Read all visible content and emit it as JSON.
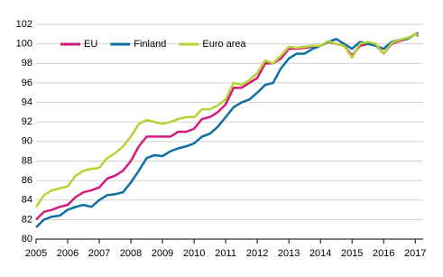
{
  "chart_data": {
    "type": "line",
    "x": [
      2005,
      2005.25,
      2005.5,
      2005.75,
      2006,
      2006.25,
      2006.5,
      2006.75,
      2007,
      2007.25,
      2007.5,
      2007.75,
      2008,
      2008.25,
      2008.5,
      2008.75,
      2009,
      2009.25,
      2009.5,
      2009.75,
      2010,
      2010.25,
      2010.5,
      2010.75,
      2011,
      2011.25,
      2011.5,
      2011.75,
      2012,
      2012.25,
      2012.5,
      2012.75,
      2013,
      2013.25,
      2013.5,
      2013.75,
      2014,
      2014.25,
      2014.5,
      2014.75,
      2015,
      2015.25,
      2015.5,
      2015.75,
      2016,
      2016.25,
      2016.5,
      2016.75,
      2017,
      2017.1
    ],
    "series": [
      {
        "name": "EU",
        "color": "#d6197c",
        "values": [
          82.0,
          82.8,
          83.0,
          83.3,
          83.5,
          84.3,
          84.8,
          85.0,
          85.3,
          86.2,
          86.5,
          87.0,
          88.0,
          89.5,
          90.5,
          90.5,
          90.5,
          90.5,
          91.0,
          91.0,
          91.3,
          92.3,
          92.5,
          93.0,
          93.8,
          95.5,
          95.5,
          96.0,
          96.5,
          98.0,
          98.0,
          98.5,
          99.5,
          99.5,
          99.6,
          99.7,
          99.8,
          100.2,
          100.0,
          99.8,
          98.8,
          99.8,
          100.0,
          99.9,
          99.0,
          100.0,
          100.3,
          100.5,
          101.0,
          100.8
        ]
      },
      {
        "name": "Finland",
        "color": "#0d6ea6",
        "values": [
          81.2,
          82.0,
          82.3,
          82.4,
          83.0,
          83.3,
          83.5,
          83.3,
          84.0,
          84.5,
          84.6,
          84.8,
          85.8,
          87.0,
          88.3,
          88.6,
          88.5,
          89.0,
          89.3,
          89.5,
          89.8,
          90.5,
          90.8,
          91.5,
          92.5,
          93.5,
          94.0,
          94.3,
          95.0,
          95.8,
          96.0,
          97.5,
          98.5,
          99.0,
          99.0,
          99.5,
          99.8,
          100.2,
          100.5,
          100.0,
          99.5,
          100.2,
          100.0,
          99.8,
          99.5,
          100.2,
          100.4,
          100.5,
          101.0,
          101.1
        ]
      },
      {
        "name": "Euro area",
        "color": "#b5d334",
        "values": [
          83.3,
          84.5,
          85.0,
          85.2,
          85.4,
          86.5,
          87.0,
          87.2,
          87.3,
          88.3,
          88.8,
          89.5,
          90.5,
          91.8,
          92.2,
          92.0,
          91.8,
          92.0,
          92.3,
          92.5,
          92.5,
          93.3,
          93.3,
          93.7,
          94.3,
          96.0,
          95.8,
          96.3,
          97.0,
          98.3,
          98.0,
          98.8,
          99.7,
          99.6,
          99.7,
          99.8,
          99.8,
          100.3,
          100.0,
          99.8,
          98.6,
          100.0,
          100.2,
          100.0,
          99.0,
          100.1,
          100.4,
          100.6,
          101.0,
          100.9
        ]
      }
    ],
    "xlim": [
      2005,
      2017.25
    ],
    "xticks": [
      2005,
      2006,
      2007,
      2008,
      2009,
      2010,
      2011,
      2012,
      2013,
      2014,
      2015,
      2016,
      2017
    ],
    "ylim": [
      80,
      102
    ],
    "yticks": [
      80,
      82,
      84,
      86,
      88,
      90,
      92,
      94,
      96,
      98,
      100,
      102
    ],
    "grid": true,
    "legend": "top-left"
  }
}
